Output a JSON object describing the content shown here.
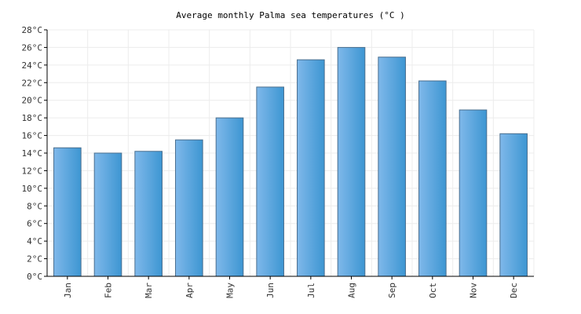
{
  "chart_data": {
    "type": "bar",
    "title": "Average monthly Palma sea temperatures (°C )",
    "categories": [
      "Jan",
      "Feb",
      "Mar",
      "Apr",
      "May",
      "Jun",
      "Jul",
      "Aug",
      "Sep",
      "Oct",
      "Nov",
      "Dec"
    ],
    "values": [
      14.6,
      14.0,
      14.2,
      15.5,
      18.0,
      21.5,
      24.6,
      26.0,
      24.9,
      22.2,
      18.9,
      16.2
    ],
    "ylim": [
      0,
      28
    ],
    "yticks": [
      0,
      2,
      4,
      6,
      8,
      10,
      12,
      14,
      16,
      18,
      20,
      22,
      24,
      26,
      28
    ],
    "ytick_suffix": "°C",
    "grid": true,
    "colors": {
      "bar_light": "#7fb8ea",
      "bar_dark": "#3d96d2",
      "bar_border": "#4a6f8f"
    }
  }
}
